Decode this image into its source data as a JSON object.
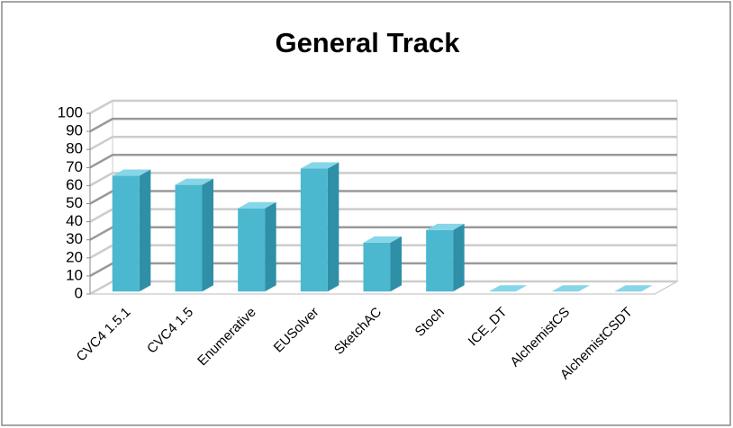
{
  "chart_data": {
    "type": "bar",
    "title": "General Track",
    "categories": [
      "CVC4 1.5.1",
      "CVC4 1.5",
      "Enumerative",
      "EUSolver",
      "SketchAC",
      "Stoch",
      "ICE_DT",
      "AlchemistCS",
      "AlchemistCSDT"
    ],
    "values": [
      64,
      59,
      46,
      68,
      27,
      34,
      0,
      0,
      0
    ],
    "color": "#4bb8d0",
    "ylim": [
      0,
      100
    ],
    "yticks": [
      0,
      10,
      20,
      30,
      40,
      50,
      60,
      70,
      80,
      90,
      100
    ],
    "grid": true
  }
}
